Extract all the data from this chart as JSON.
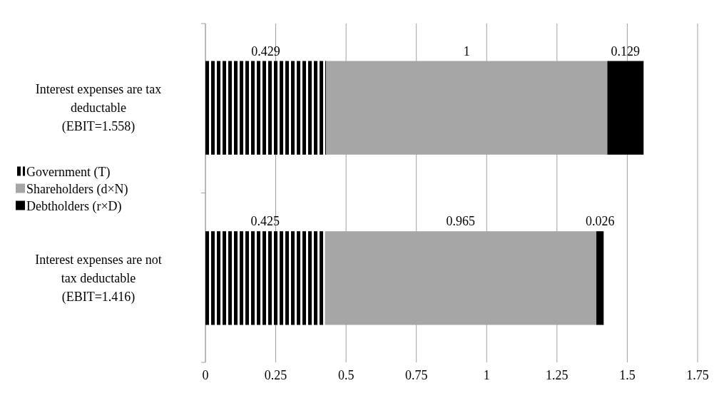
{
  "chart_data": {
    "type": "bar",
    "orientation": "horizontal",
    "stacked": true,
    "categories": [
      "Interest expenses are tax deductable (EBIT=1.558)",
      "Interest expenses are not tax deductable (EBIT=1.416)"
    ],
    "series": [
      {
        "name": "Government (T)",
        "color": "#000000",
        "values": [
          0.429,
          0.425
        ]
      },
      {
        "name": "Shareholders (d×N)",
        "color": "#a6a6a6",
        "values": [
          1,
          0.965
        ]
      },
      {
        "name": "Debtholders (r×D)",
        "color": "#000000",
        "values": [
          0.129,
          0.026
        ]
      }
    ],
    "xlim": [
      0,
      1.75
    ],
    "xticks": [
      0,
      0.25,
      0.5,
      0.75,
      1,
      1.25,
      1.5,
      1.75
    ],
    "grid": "x",
    "legend": "left",
    "data_labels": true
  }
}
